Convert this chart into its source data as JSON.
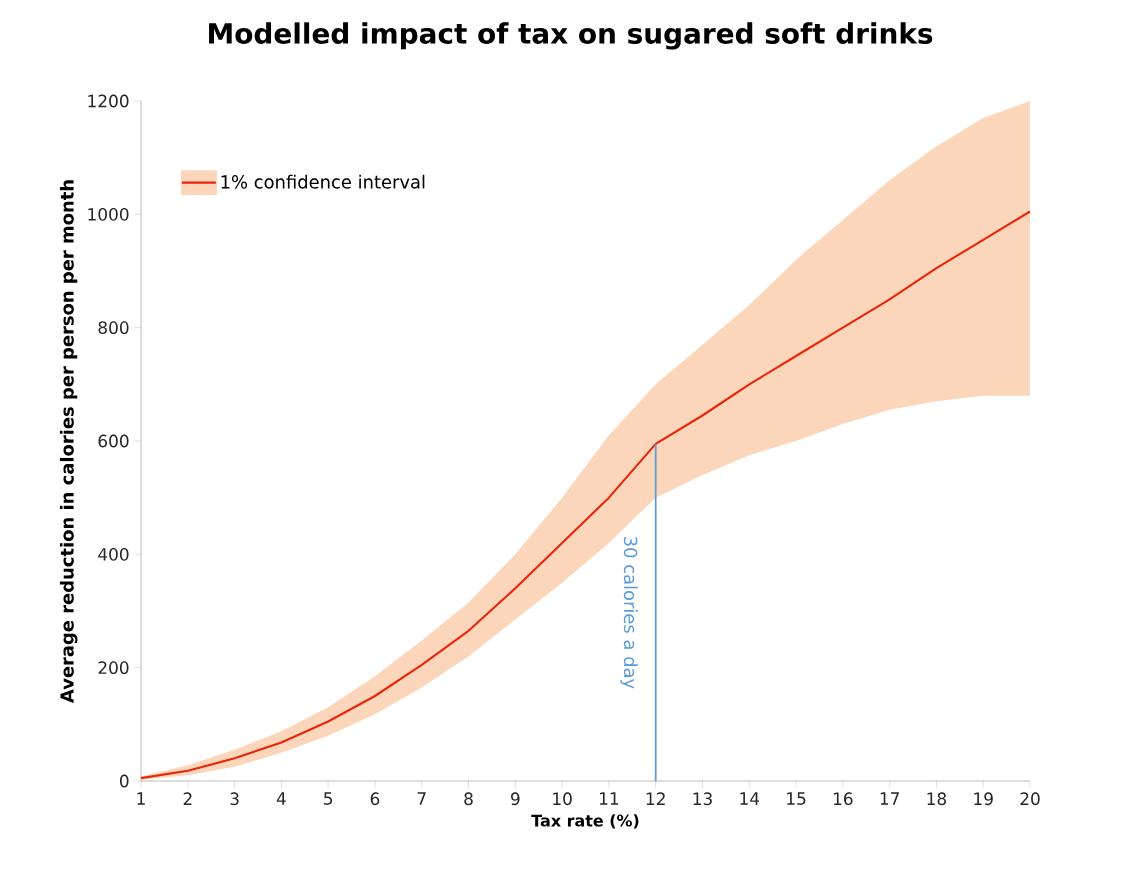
{
  "chart_data": {
    "type": "line",
    "title": "Modelled impact of tax on sugared soft drinks",
    "xlabel": "Tax rate (%)",
    "ylabel": "Average reduction in calories per person per month",
    "x": [
      1,
      2,
      3,
      4,
      5,
      6,
      7,
      8,
      9,
      10,
      11,
      12,
      13,
      14,
      15,
      16,
      17,
      18,
      19,
      20
    ],
    "series": [
      {
        "name": "1% confidence interval",
        "color": "#e8260c",
        "values": [
          5,
          18,
          40,
          68,
          105,
          150,
          205,
          265,
          340,
          420,
          500,
          595,
          645,
          700,
          750,
          800,
          850,
          905,
          955,
          1005
        ],
        "lower": [
          2,
          10,
          25,
          50,
          80,
          118,
          165,
          220,
          285,
          350,
          420,
          500,
          540,
          575,
          600,
          630,
          655,
          670,
          680,
          680
        ],
        "upper": [
          8,
          28,
          55,
          88,
          130,
          185,
          248,
          315,
          400,
          500,
          610,
          700,
          770,
          840,
          920,
          990,
          1060,
          1120,
          1170,
          1200
        ]
      }
    ],
    "xlim": [
      1,
      20
    ],
    "xticks": [
      1,
      2,
      3,
      4,
      5,
      6,
      7,
      8,
      9,
      10,
      11,
      12,
      13,
      14,
      15,
      16,
      17,
      18,
      19,
      20
    ],
    "ylim": [
      0,
      1200
    ],
    "yticks": [
      0,
      200,
      400,
      600,
      800,
      1000,
      1200
    ],
    "ref_lines": [
      {
        "axis": "x",
        "value": 12,
        "label": "30 calories a day",
        "color": "#5b9bd5"
      }
    ],
    "legend": "top left",
    "grid": false,
    "marker": "none",
    "line_style": "solid"
  }
}
